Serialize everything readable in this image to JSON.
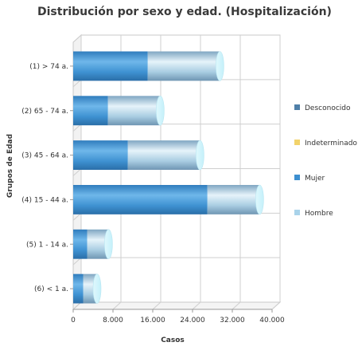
{
  "chart_data": {
    "type": "bar",
    "orientation": "horizontal",
    "stacked": true,
    "style": "3d-cylinder",
    "title": "Distribución por sexo y edad. (Hospitalización)",
    "xlabel": "Casos",
    "ylabel": "Grupos de Edad",
    "xlim": [
      0,
      40000
    ],
    "x_ticks": [
      "0",
      "8.000",
      "16.000",
      "24.000",
      "32.000",
      "40.000"
    ],
    "x_tick_values": [
      0,
      8000,
      16000,
      24000,
      32000,
      40000
    ],
    "grid": true,
    "legend_position": "right",
    "categories": [
      "(1) > 74 a.",
      "(2) 65 - 74 a.",
      "(3) 45 - 64 a.",
      "(4) 15 - 44 a.",
      "(5) 1 - 14 a.",
      "(6) < 1 a."
    ],
    "series": [
      {
        "name": "Desconocido",
        "color": "#4f7fa8",
        "values": [
          0,
          0,
          0,
          0,
          0,
          0
        ]
      },
      {
        "name": "Indeterminado",
        "color": "#f2d36b",
        "values": [
          0,
          0,
          0,
          0,
          0,
          0
        ]
      },
      {
        "name": "Mujer",
        "color": "#3d8fd0",
        "values": [
          15000,
          7000,
          11000,
          27000,
          2800,
          2000
        ]
      },
      {
        "name": "Hombre",
        "color": "#a9d3ea",
        "values": [
          14500,
          10500,
          14500,
          10500,
          4300,
          2800
        ]
      }
    ]
  }
}
